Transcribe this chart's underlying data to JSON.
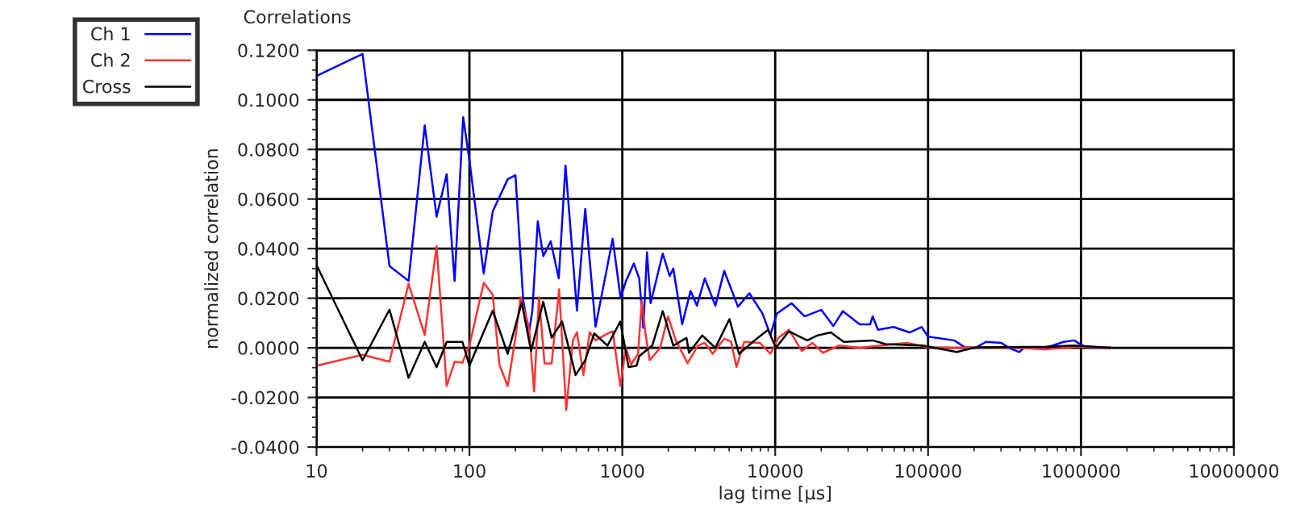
{
  "chart_data": {
    "type": "line",
    "title": "Correlations",
    "xlabel": "lag time [µs]",
    "ylabel": "normalized correlation",
    "log": "x",
    "grid": true,
    "legend": "top left",
    "marker": "none",
    "line_style": "solid",
    "xlim": [
      10,
      10000000
    ],
    "xticks": [
      10,
      100,
      1000,
      10000,
      100000,
      1000000,
      10000000
    ],
    "ylim": [
      -0.04,
      0.12
    ],
    "yticks": [
      {
        "value": -0.04,
        "label": "-0.0400"
      },
      {
        "value": -0.02,
        "label": "-0.0200"
      },
      {
        "value": 0,
        "label": "0.0000"
      },
      {
        "value": 0.02,
        "label": "0.0200"
      },
      {
        "value": 0.04,
        "label": "0.0400"
      },
      {
        "value": 0.06,
        "label": "0.0600"
      },
      {
        "value": 0.08,
        "label": "0.0800"
      },
      {
        "value": 0.1,
        "label": "0.1000"
      },
      {
        "value": 0.12,
        "label": "0.1200"
      }
    ],
    "series": [
      {
        "name": "Ch 1",
        "color": "#0000ff",
        "x": [
          10,
          20,
          30,
          40,
          51,
          61,
          71,
          80,
          91,
          100,
          124,
          142,
          178,
          200,
          225,
          245,
          258,
          280,
          304,
          340,
          384,
          425,
          505,
          572,
          668,
          865,
          975,
          1057,
          1190,
          1289,
          1373,
          1450,
          1532,
          1838,
          2040,
          2155,
          2463,
          2797,
          3075,
          3462,
          4060,
          4640,
          5706,
          6780,
          8260,
          9305,
          10250,
          12800,
          15560,
          20000,
          24000,
          27700,
          35700,
          41800,
          43400,
          47000,
          59500,
          75600,
          90700,
          100000,
          148000,
          174000,
          204000,
          239000,
          302000,
          337000,
          395000,
          427000,
          585000,
          770000,
          902000,
          1016000,
          1143000,
          1567000
        ],
        "values": [
          0.1096,
          0.1185,
          0.033,
          0.027,
          0.0897,
          0.0529,
          0.07,
          0.027,
          0.093,
          0.0756,
          0.03,
          0.055,
          0.068,
          0.0696,
          0.019,
          0.006,
          0.015,
          0.051,
          0.037,
          0.043,
          0.028,
          0.0735,
          0.015,
          0.056,
          0.0085,
          0.044,
          0.02,
          0.027,
          0.034,
          0.028,
          0.008,
          0.0385,
          0.018,
          0.038,
          0.029,
          0.032,
          0.0095,
          0.023,
          0.017,
          0.028,
          0.017,
          0.031,
          0.0166,
          0.022,
          0.0138,
          0.0052,
          0.0138,
          0.018,
          0.0127,
          0.0153,
          0.0088,
          0.0148,
          0.0095,
          0.0095,
          0.0127,
          0.0073,
          0.0084,
          0.0062,
          0.0084,
          0.0045,
          0.003,
          0.0002,
          0.0,
          0.0024,
          0.002,
          0.0,
          -0.0017,
          0.0002,
          0.0,
          0.0024,
          0.003,
          0.001,
          0.0,
          0.0
        ]
      },
      {
        "name": "Ch 2",
        "color": "#ff3333",
        "x": [
          10,
          20,
          30,
          40,
          51,
          61,
          71,
          80,
          90,
          100,
          124,
          142,
          157,
          178,
          200,
          216,
          245,
          265,
          285,
          310,
          345,
          386,
          430,
          475,
          505,
          557,
          612,
          668,
          770,
          865,
          970,
          1057,
          1140,
          1268,
          1340,
          1415,
          1509,
          1768,
          1990,
          2240,
          2670,
          3120,
          3460,
          3900,
          4640,
          5150,
          5580,
          6270,
          7930,
          9300,
          10500,
          12300,
          14950,
          17500,
          20500,
          26000,
          35700,
          49000,
          72700,
          100000,
          148000,
          337000,
          585000,
          940000,
          1567000
        ],
        "values": [
          -0.0072,
          -0.0028,
          -0.0056,
          0.0258,
          0.0052,
          0.041,
          -0.0154,
          -0.0056,
          -0.006,
          0.0009,
          0.0262,
          0.0215,
          -0.0067,
          -0.0154,
          0.0041,
          0.0204,
          0.0085,
          -0.0176,
          0.0204,
          -0.0063,
          -0.0063,
          0.0236,
          -0.0251,
          0.003,
          0.0063,
          -0.011,
          0.0063,
          0.003,
          0.0052,
          0.0067,
          -0.0154,
          0.0,
          -0.0067,
          -0.0024,
          0.019,
          0.0062,
          -0.005,
          0.0,
          0.0127,
          0.003,
          -0.0062,
          0.0009,
          0.002,
          -0.0024,
          0.0037,
          0.0024,
          -0.0077,
          0.0024,
          0.002,
          -0.0024,
          0.004,
          0.0073,
          -0.0013,
          0.002,
          -0.002,
          0.0009,
          0.0,
          0.0009,
          0.002,
          0.0002,
          0.0,
          0.0002,
          -0.0006,
          0.0004,
          0.0
        ]
      },
      {
        "name": "Cross",
        "color": "#000000",
        "x": [
          10,
          20,
          30,
          40,
          51,
          61,
          71,
          90,
          100,
          142,
          178,
          220,
          253,
          304,
          345,
          404,
          495,
          572,
          655,
          800,
          970,
          1100,
          1240,
          1289,
          1570,
          1838,
          2155,
          2630,
          2730,
          3330,
          4060,
          5020,
          5800,
          7330,
          8980,
          10100,
          12300,
          16200,
          18940,
          23100,
          28100,
          43400,
          52800,
          92300,
          154000,
          204000,
          585000,
          902000,
          1567000
        ],
        "values": [
          0.0334,
          -0.005,
          0.0154,
          -0.0121,
          0.0024,
          -0.0078,
          0.0024,
          0.0024,
          -0.0072,
          0.015,
          -0.0024,
          0.0182,
          -0.0013,
          0.0186,
          0.0041,
          0.0106,
          -0.011,
          -0.005,
          0.0058,
          0.0009,
          0.0106,
          -0.0078,
          -0.0072,
          -0.0034,
          0.0009,
          0.0148,
          0.0009,
          0.004,
          -0.002,
          0.005,
          0.0,
          0.0116,
          -0.0024,
          0.003,
          0.0073,
          0.0,
          0.0067,
          0.003,
          0.005,
          0.0062,
          0.0024,
          0.003,
          0.0015,
          0.0009,
          -0.0017,
          0.0002,
          0.0004,
          0.0009,
          0.0
        ]
      }
    ]
  }
}
